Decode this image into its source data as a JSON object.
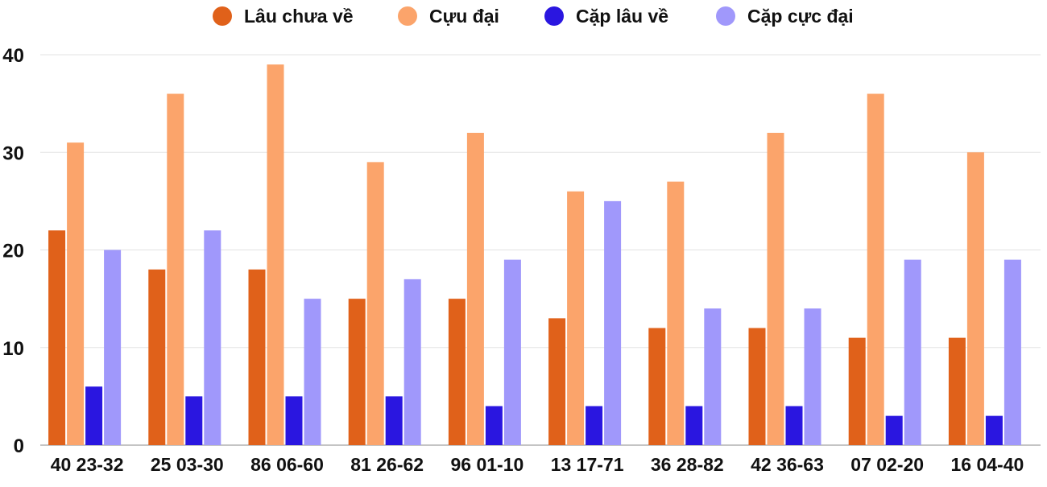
{
  "chart_data": {
    "type": "bar",
    "title": "",
    "xlabel": "",
    "ylabel": "",
    "categories": [
      "40 23-32",
      "25 03-30",
      "86 06-60",
      "81 26-62",
      "96 01-10",
      "13 17-71",
      "36 28-82",
      "42 36-63",
      "07 02-20",
      "16 04-40"
    ],
    "series": [
      {
        "name": "Lâu chưa về",
        "color": "#e0611a",
        "values": [
          22,
          18,
          18,
          15,
          15,
          13,
          12,
          12,
          11,
          11
        ]
      },
      {
        "name": "Cựu đại",
        "color": "#fba46b",
        "values": [
          31,
          36,
          39,
          29,
          32,
          26,
          27,
          32,
          36,
          30
        ]
      },
      {
        "name": "Cặp lâu về",
        "color": "#2a16e0",
        "values": [
          6,
          5,
          5,
          5,
          4,
          4,
          4,
          4,
          3,
          3
        ]
      },
      {
        "name": "Cặp cực đại",
        "color": "#a098fb",
        "values": [
          20,
          22,
          15,
          17,
          19,
          25,
          14,
          14,
          19,
          19
        ]
      }
    ],
    "ylim": [
      0,
      40
    ],
    "yticks": [
      0,
      10,
      20,
      30,
      40
    ],
    "grid": true,
    "legend": "top-center"
  }
}
